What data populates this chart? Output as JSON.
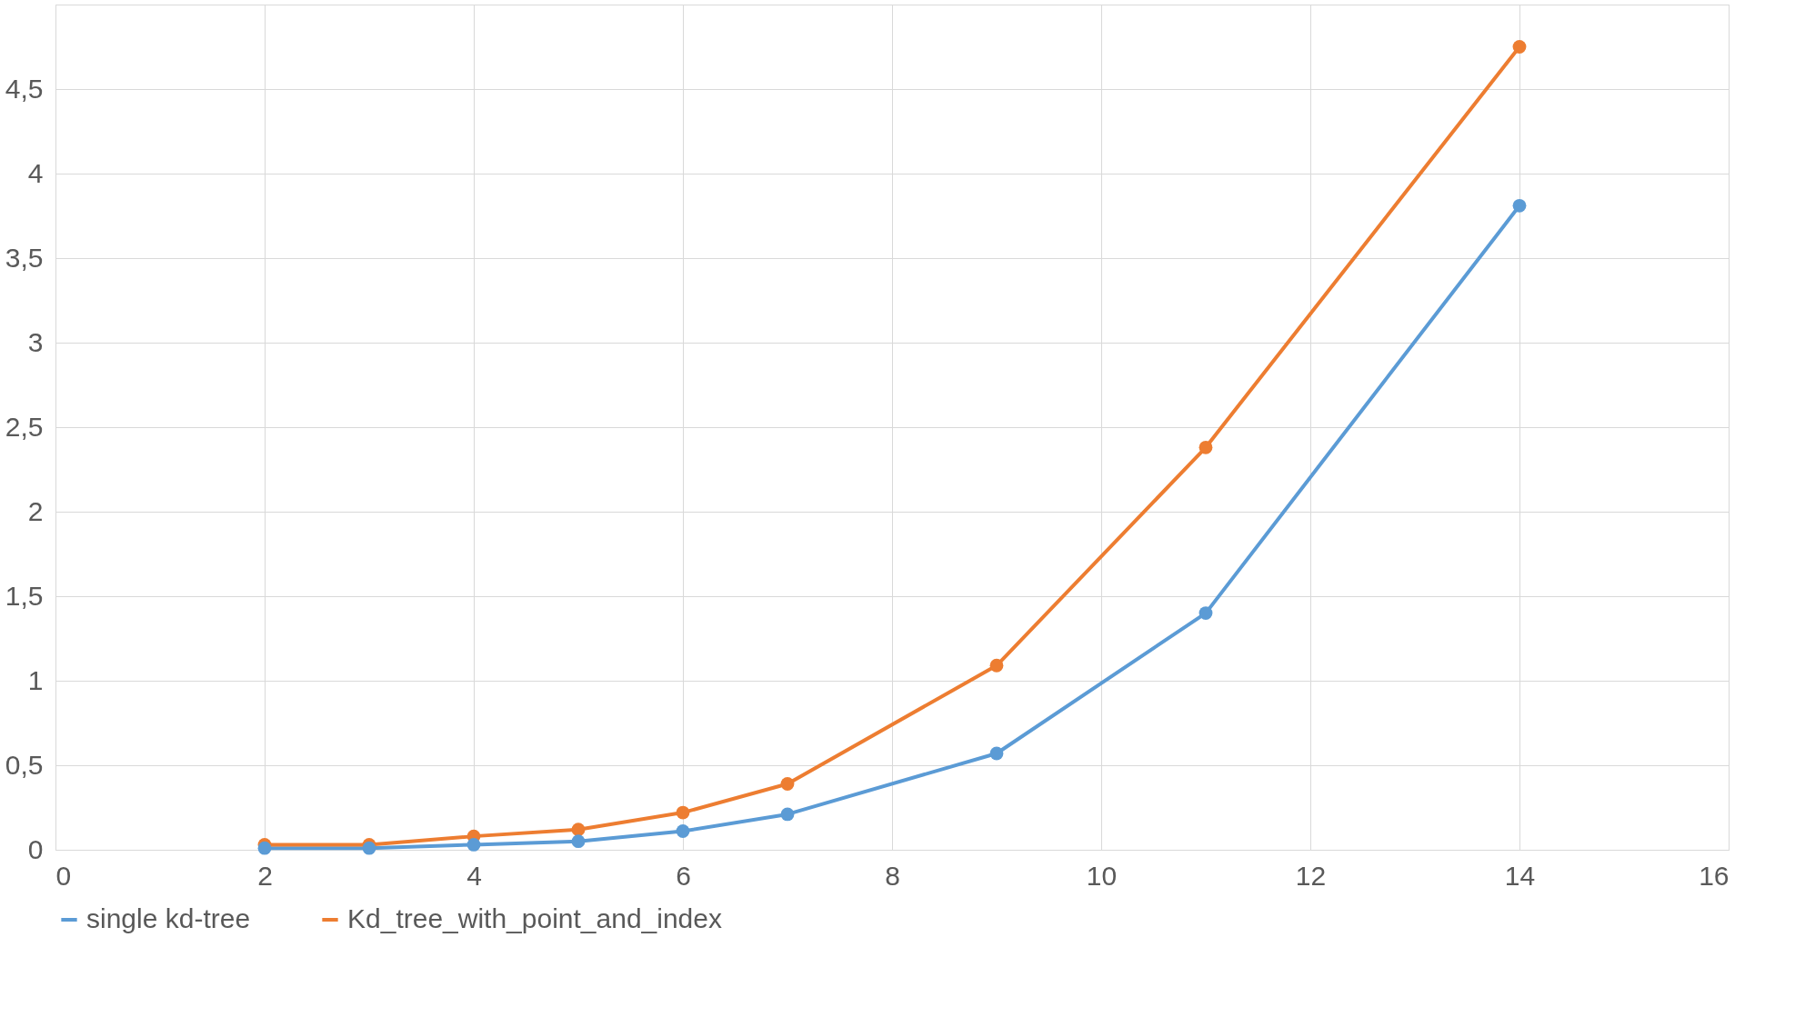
{
  "chart_data": {
    "type": "line",
    "x": [
      2,
      3,
      4,
      5,
      6,
      7,
      9,
      11,
      14
    ],
    "series": [
      {
        "name": "single kd-tree",
        "color": "#5b9bd5",
        "values": [
          0.01,
          0.01,
          0.03,
          0.05,
          0.11,
          0.21,
          0.57,
          1.4,
          3.81
        ]
      },
      {
        "name": "Kd_tree_with_point_and_index",
        "color": "#ed7d31",
        "values": [
          0.03,
          0.03,
          0.08,
          0.12,
          0.22,
          0.39,
          1.09,
          2.38,
          4.75
        ]
      }
    ],
    "xlim": [
      0,
      16
    ],
    "xticks": [
      0,
      2,
      4,
      6,
      8,
      10,
      12,
      14,
      16
    ],
    "ylim": [
      0,
      5
    ],
    "yticks": [
      0,
      {
        "value": 0.5,
        "label": "0,5"
      },
      1,
      {
        "value": 1.5,
        "label": "1,5"
      },
      2,
      {
        "value": 2.5,
        "label": "2,5"
      },
      3,
      {
        "value": 3.5,
        "label": "3,5"
      },
      4,
      {
        "value": 4.5,
        "label": "4,5"
      },
      {
        "value": 5,
        "label": null
      }
    ],
    "grid": true,
    "legend": "bottom",
    "marker": "circle",
    "line_style": "solid"
  }
}
